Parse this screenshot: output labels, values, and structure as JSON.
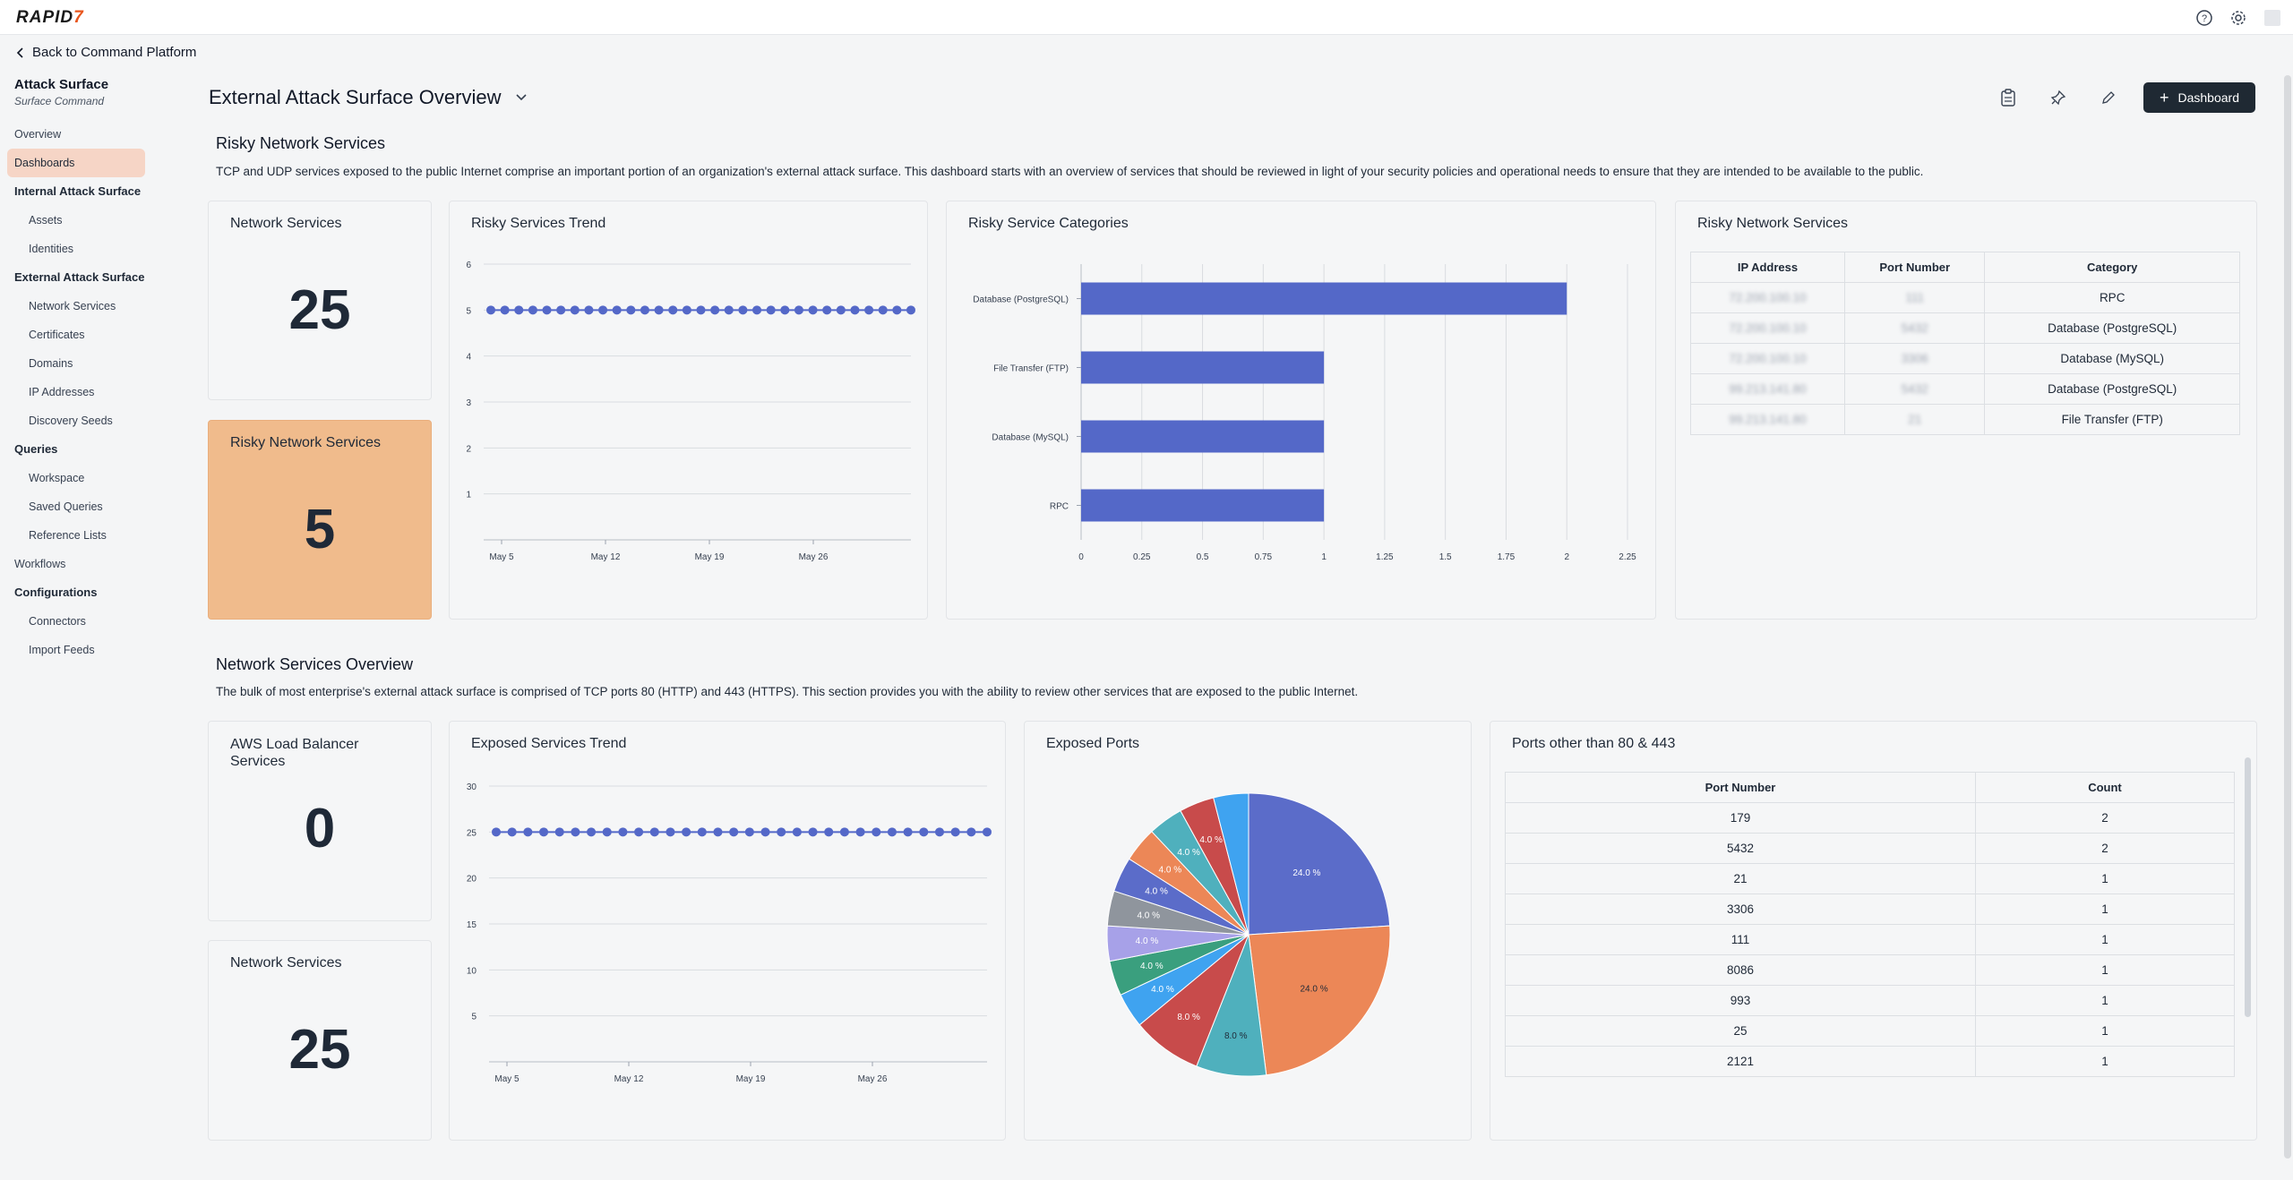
{
  "app": {
    "logo_text": "RAPID",
    "logo_accent": "7"
  },
  "back_link": "Back to Command Platform",
  "sidebar": {
    "title": "Attack Surface",
    "subtitle": "Surface Command",
    "items": [
      {
        "label": "Overview",
        "type": "lvl0"
      },
      {
        "label": "Dashboards",
        "type": "active"
      },
      {
        "label": "Internal Attack Surface",
        "type": "section"
      },
      {
        "label": "Assets",
        "type": "lvl1"
      },
      {
        "label": "Identities",
        "type": "lvl1"
      },
      {
        "label": "External Attack Surface",
        "type": "section"
      },
      {
        "label": "Network Services",
        "type": "lvl1"
      },
      {
        "label": "Certificates",
        "type": "lvl1"
      },
      {
        "label": "Domains",
        "type": "lvl1"
      },
      {
        "label": "IP Addresses",
        "type": "lvl1"
      },
      {
        "label": "Discovery Seeds",
        "type": "lvl1"
      },
      {
        "label": "Queries",
        "type": "section"
      },
      {
        "label": "Workspace",
        "type": "lvl1"
      },
      {
        "label": "Saved Queries",
        "type": "lvl1"
      },
      {
        "label": "Reference Lists",
        "type": "lvl1"
      },
      {
        "label": "Workflows",
        "type": "lvl0"
      },
      {
        "label": "Configurations",
        "type": "section"
      },
      {
        "label": "Connectors",
        "type": "lvl1"
      },
      {
        "label": "Import Feeds",
        "type": "lvl1"
      }
    ]
  },
  "header": {
    "title": "External Attack Surface Overview",
    "dashboard_button": "Dashboard"
  },
  "section1": {
    "title": "Risky Network Services",
    "description": "TCP and UDP services exposed to the public Internet comprise an important portion of an organization's external attack surface. This dashboard starts with an overview of services that should be reviewed in light of your security policies and operational needs to ensure that they are intended to be available to the public."
  },
  "section2": {
    "title": "Network Services Overview",
    "description": "The bulk of most enterprise's external attack surface is comprised of TCP ports 80 (HTTP) and 443 (HTTPS). This section provides you with the ability to review other services that are exposed to the public Internet."
  },
  "cards": {
    "network_services": {
      "title": "Network Services",
      "value": "25"
    },
    "risky_network_services": {
      "title": "Risky Network Services",
      "value": "5"
    },
    "risky_trend": {
      "title": "Risky Services Trend"
    },
    "risky_categories": {
      "title": "Risky Service Categories"
    },
    "risky_table": {
      "title": "Risky Network Services",
      "columns": [
        "IP Address",
        "Port Number",
        "Category"
      ],
      "rows": [
        [
          "72.200.100.10",
          "111",
          "RPC"
        ],
        [
          "72.200.100.10",
          "5432",
          "Database (PostgreSQL)"
        ],
        [
          "72.200.100.10",
          "3306",
          "Database (MySQL)"
        ],
        [
          "99.213.141.80",
          "5432",
          "Database (PostgreSQL)"
        ],
        [
          "99.213.141.80",
          "21",
          "File Transfer (FTP)"
        ]
      ]
    },
    "aws_lb": {
      "title": "AWS Load Balancer Services",
      "value": "0"
    },
    "network_services_2": {
      "title": "Network Services",
      "value": "25"
    },
    "exposed_trend": {
      "title": "Exposed Services Trend"
    },
    "exposed_ports": {
      "title": "Exposed Ports"
    },
    "ports_table": {
      "title": "Ports other than 80 & 443",
      "columns": [
        "Port Number",
        "Count"
      ],
      "rows": [
        [
          "179",
          "2"
        ],
        [
          "5432",
          "2"
        ],
        [
          "21",
          "1"
        ],
        [
          "3306",
          "1"
        ],
        [
          "111",
          "1"
        ],
        [
          "8086",
          "1"
        ],
        [
          "993",
          "1"
        ],
        [
          "25",
          "1"
        ],
        [
          "2121",
          "1"
        ]
      ]
    }
  },
  "chart_data": [
    {
      "type": "line",
      "title": "Risky Services Trend",
      "x_ticks": [
        "May 5",
        "May 12",
        "May 19",
        "May 26"
      ],
      "ylim": [
        0,
        6
      ],
      "y_ticks": [
        1,
        2,
        3,
        4,
        5,
        6
      ],
      "series": [
        {
          "values": [
            5,
            5,
            5,
            5,
            5,
            5,
            5,
            5,
            5,
            5,
            5,
            5,
            5,
            5,
            5,
            5,
            5,
            5,
            5,
            5,
            5,
            5,
            5,
            5,
            5,
            5,
            5,
            5,
            5,
            5,
            5
          ]
        }
      ],
      "color": "#5468c8",
      "grid": true
    },
    {
      "type": "bar",
      "orientation": "horizontal",
      "title": "Risky Service Categories",
      "categories": [
        "Database (PostgreSQL)",
        "File Transfer (FTP)",
        "Database (MySQL)",
        "RPC"
      ],
      "values": [
        2,
        1,
        1,
        1
      ],
      "xlim": [
        0,
        2.25
      ],
      "x_ticks": [
        "0",
        "0.25",
        "0.5",
        "0.75",
        "1",
        "1.25",
        "1.5",
        "1.75",
        "2",
        "2.25"
      ],
      "color": "#5468c8",
      "grid": true
    },
    {
      "type": "line",
      "title": "Exposed Services Trend",
      "x_ticks": [
        "May 5",
        "May 12",
        "May 19",
        "May 26"
      ],
      "ylim": [
        0,
        30
      ],
      "y_ticks": [
        5,
        10,
        15,
        20,
        25,
        30
      ],
      "series": [
        {
          "values": [
            25,
            25,
            25,
            25,
            25,
            25,
            25,
            25,
            25,
            25,
            25,
            25,
            25,
            25,
            25,
            25,
            25,
            25,
            25,
            25,
            25,
            25,
            25,
            25,
            25,
            25,
            25,
            25,
            25,
            25,
            25,
            25
          ]
        }
      ],
      "color": "#5468c8",
      "grid": true
    },
    {
      "type": "pie",
      "title": "Exposed Ports",
      "slices": [
        {
          "value": 24.0,
          "label": "24.0 %",
          "color": "#5b6cc9"
        },
        {
          "value": 24.0,
          "label": "24.0 %",
          "color": "#ec8757"
        },
        {
          "value": 8.0,
          "label": "8.0 %",
          "color": "#4fb0bd"
        },
        {
          "value": 8.0,
          "label": "8.0 %",
          "color": "#c84b4b"
        },
        {
          "value": 4.0,
          "label": "4.0 %",
          "color": "#3fa3f0"
        },
        {
          "value": 4.0,
          "label": "4.0 %",
          "color": "#3a9f7e"
        },
        {
          "value": 4.0,
          "label": "4.0 %",
          "color": "#a7a1e8"
        },
        {
          "value": 4.0,
          "label": "4.0 %",
          "color": "#8f959d"
        },
        {
          "value": 4.0,
          "label": "4.0 %",
          "color": "#5b6cc9"
        },
        {
          "value": 4.0,
          "label": "4.0 %",
          "color": "#ec8757"
        },
        {
          "value": 4.0,
          "label": "4.0 %",
          "color": "#4fb0bd"
        },
        {
          "value": 4.0,
          "label": "4.0 %",
          "color": "#c84b4b"
        },
        {
          "value": 4.0,
          "label": "",
          "color": "#3fa3f0"
        }
      ]
    }
  ]
}
